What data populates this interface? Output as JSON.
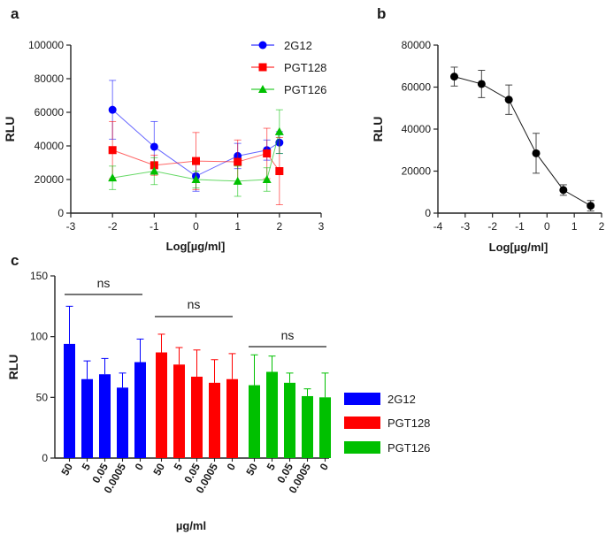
{
  "chart_data": [
    {
      "panel": "a",
      "type": "line",
      "xlabel": "Log[µg/ml]",
      "ylabel": "RLU",
      "xlim": [
        -3,
        3
      ],
      "ylim": [
        0,
        100000
      ],
      "xticks": [
        "-3",
        "-2",
        "-1",
        "0",
        "1",
        "2",
        "3"
      ],
      "yticks": [
        "0",
        "20000",
        "40000",
        "60000",
        "80000",
        "100000"
      ],
      "legend_position": "top-right",
      "x": [
        -2,
        -1,
        0,
        1,
        1.7,
        2
      ],
      "series": [
        {
          "name": "2G12",
          "color": "#0000ff",
          "marker": "circle",
          "values": [
            61500,
            39500,
            22000,
            34000,
            37500,
            42000
          ],
          "errors": [
            17500,
            15000,
            9000,
            7500,
            6000,
            6500
          ]
        },
        {
          "name": "PGT128",
          "color": "#ff0000",
          "marker": "square",
          "values": [
            37500,
            28500,
            31000,
            30500,
            35500,
            25000
          ],
          "errors": [
            17000,
            6000,
            17000,
            13000,
            15000,
            20000
          ]
        },
        {
          "name": "PGT126",
          "color": "#00c000",
          "marker": "triangle",
          "values": [
            21000,
            25000,
            20000,
            19000,
            20000,
            48500
          ],
          "errors": [
            7000,
            8000,
            5000,
            9000,
            7000,
            13000
          ]
        }
      ]
    },
    {
      "panel": "b",
      "type": "line",
      "xlabel": "Log[µg/ml]",
      "ylabel": "RLU",
      "xlim": [
        -4,
        2
      ],
      "ylim": [
        0,
        80000
      ],
      "xticks": [
        "-4",
        "-3",
        "-2",
        "-1",
        "0",
        "1",
        "2"
      ],
      "yticks": [
        "0",
        "20000",
        "40000",
        "60000",
        "80000"
      ],
      "series": [
        {
          "name": "",
          "color": "#000000",
          "marker": "circle",
          "x": [
            -3.4,
            -2.4,
            -1.4,
            -0.4,
            0.6,
            1.6
          ],
          "values": [
            65000,
            61500,
            54000,
            28500,
            11000,
            3500
          ],
          "errors": [
            4500,
            6500,
            7000,
            9500,
            2500,
            2500
          ]
        }
      ]
    },
    {
      "panel": "c",
      "type": "bar",
      "xlabel": "µg/ml",
      "ylabel": "RLU",
      "ylim": [
        0,
        150
      ],
      "yticks": [
        "0",
        "50",
        "100",
        "150"
      ],
      "categories": [
        "50",
        "5",
        "0.05",
        "0.0005",
        "0"
      ],
      "legend_position": "right",
      "series": [
        {
          "name": "2G12",
          "color": "#0000ff",
          "values": [
            94,
            65,
            69,
            58,
            79
          ],
          "errors": [
            31,
            15,
            13,
            12,
            19
          ]
        },
        {
          "name": "PGT128",
          "color": "#ff0000",
          "values": [
            87,
            77,
            67,
            62,
            65
          ],
          "errors": [
            15,
            14,
            22,
            19,
            21
          ]
        },
        {
          "name": "PGT126",
          "color": "#00c000",
          "values": [
            60,
            71,
            62,
            51,
            50
          ],
          "errors": [
            25,
            13,
            8,
            6,
            20
          ]
        }
      ],
      "annotations": [
        "ns",
        "ns",
        "ns"
      ]
    }
  ]
}
